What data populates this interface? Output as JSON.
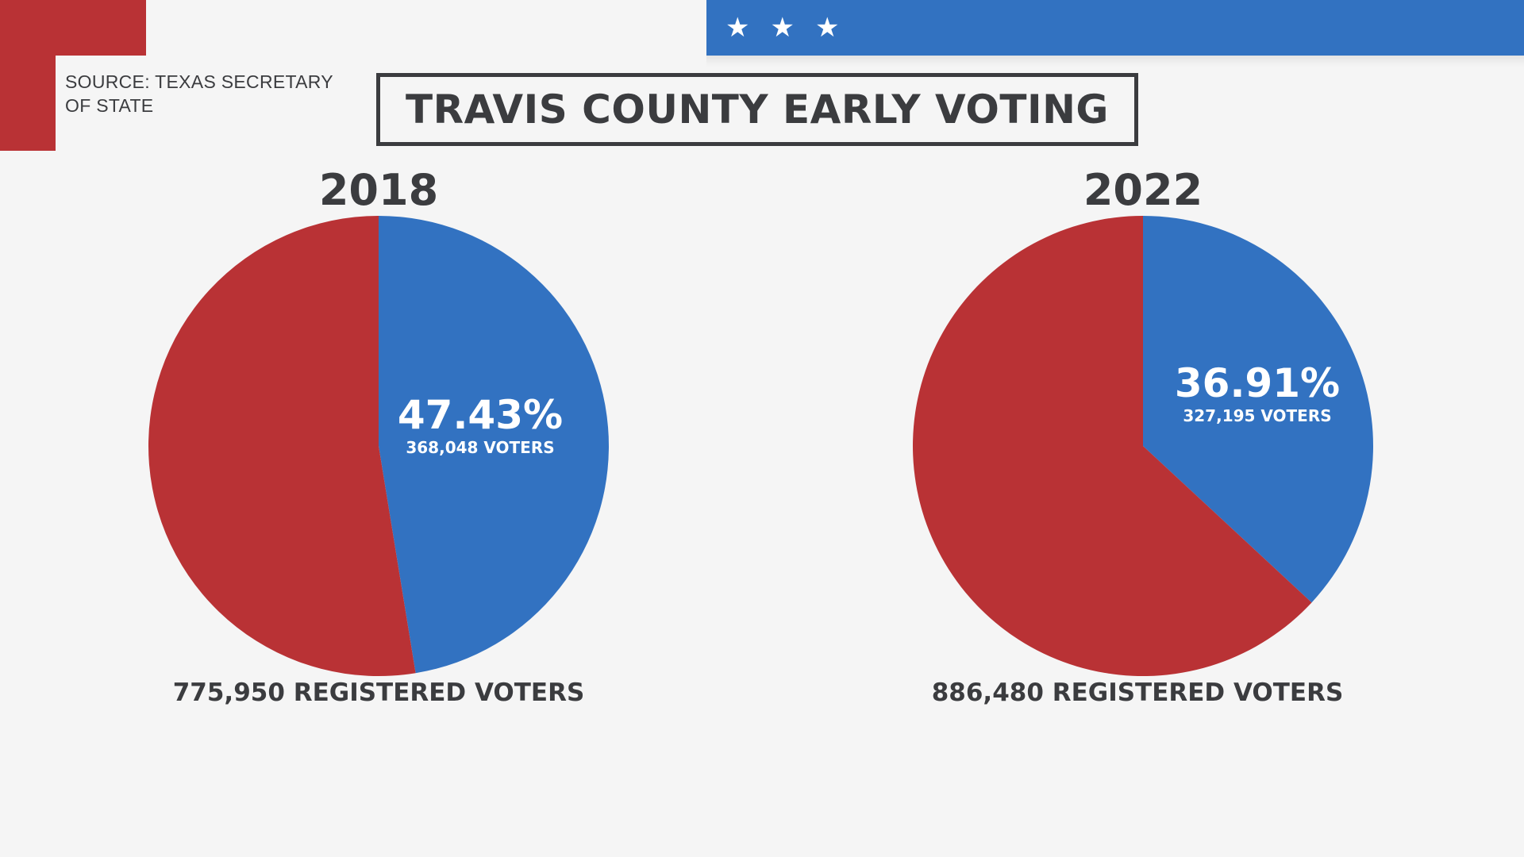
{
  "source": "SOURCE: TEXAS SECRETARY OF STATE",
  "title": "TRAVIS COUNTY EARLY VOTING",
  "stars": [
    "★",
    "★",
    "★"
  ],
  "colors": {
    "red": "#b93235",
    "blue": "#3272c1",
    "text": "#3b3c3f",
    "background": "#f5f5f5"
  },
  "chart_data": [
    {
      "type": "pie",
      "title": "2018",
      "slices": [
        {
          "value": 47.43,
          "color": "#3272c1",
          "label": "47.43%",
          "sublabel": "368,048 VOTERS"
        },
        {
          "value": 52.57,
          "color": "#b93235",
          "label": "",
          "sublabel": ""
        }
      ],
      "footer": "775,950 REGISTERED VOTERS"
    },
    {
      "type": "pie",
      "title": "2022",
      "slices": [
        {
          "value": 36.91,
          "color": "#3272c1",
          "label": "36.91%",
          "sublabel": "327,195 VOTERS"
        },
        {
          "value": 63.09,
          "color": "#b93235",
          "label": "",
          "sublabel": ""
        }
      ],
      "footer": "886,480 REGISTERED VOTERS"
    }
  ]
}
